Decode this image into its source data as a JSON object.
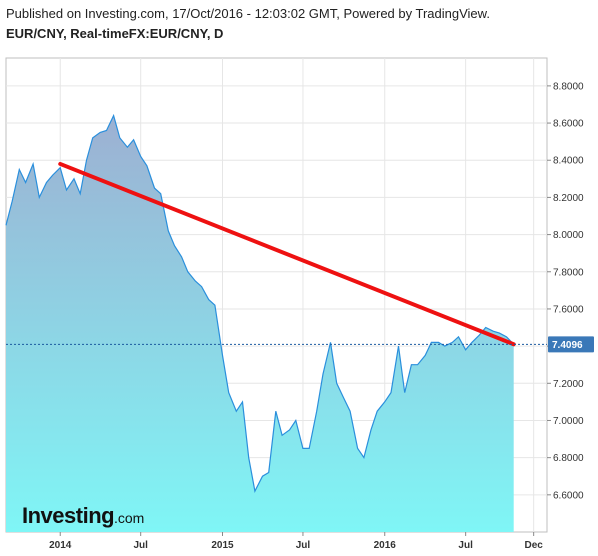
{
  "header": {
    "published": "Published on Investing.com, 17/Oct/2016 - 12:03:02 GMT, Powered by TradingView.",
    "title": "EUR/CNY, Real-timeFX:EUR/CNY, D"
  },
  "logo": {
    "main": "Investing",
    "suffix": ".com"
  },
  "colors": {
    "line": "#2a8fdc",
    "area_top": "#9db0d2",
    "area_bottom": "#7ff6f6",
    "trendline": "#ee1111",
    "current_price_line": "#1a5aa0",
    "price_badge": "#3a78b8"
  },
  "chart_data": {
    "type": "area",
    "title": "",
    "xlabel": "",
    "ylabel": "",
    "ylim": [
      6.4,
      8.95
    ],
    "yticks": [
      6.6,
      6.8,
      7.0,
      7.2,
      7.4,
      7.6,
      7.8,
      8.0,
      8.2,
      8.4,
      8.6,
      8.8
    ],
    "ytick_labels": [
      "6.6000",
      "6.8000",
      "7.0000",
      "7.2000",
      "7.4000",
      "7.6000",
      "7.8000",
      "8.0000",
      "8.2000",
      "8.4000",
      "8.6000",
      "8.8000"
    ],
    "xlim": [
      "2013-09-01",
      "2016-12-31"
    ],
    "xticks": [
      {
        "date": "2014-01-01",
        "label": "2014"
      },
      {
        "date": "2014-07-01",
        "label": "Jul"
      },
      {
        "date": "2015-01-01",
        "label": "2015"
      },
      {
        "date": "2015-07-01",
        "label": "Jul"
      },
      {
        "date": "2016-01-01",
        "label": "2016"
      },
      {
        "date": "2016-07-01",
        "label": "Jul"
      },
      {
        "date": "2016-12-01",
        "label": "Dec"
      }
    ],
    "grid": true,
    "last_value": 7.4096,
    "last_value_label": "7.4096",
    "series": [
      {
        "points": [
          [
            "2013-09-01",
            8.05
          ],
          [
            "2013-09-15",
            8.18
          ],
          [
            "2013-10-01",
            8.35
          ],
          [
            "2013-10-15",
            8.28
          ],
          [
            "2013-11-01",
            8.38
          ],
          [
            "2013-11-15",
            8.2
          ],
          [
            "2013-12-01",
            8.28
          ],
          [
            "2013-12-15",
            8.32
          ],
          [
            "2014-01-01",
            8.36
          ],
          [
            "2014-01-15",
            8.24
          ],
          [
            "2014-02-01",
            8.3
          ],
          [
            "2014-02-15",
            8.22
          ],
          [
            "2014-03-01",
            8.4
          ],
          [
            "2014-03-15",
            8.52
          ],
          [
            "2014-04-01",
            8.55
          ],
          [
            "2014-04-15",
            8.56
          ],
          [
            "2014-05-01",
            8.64
          ],
          [
            "2014-05-15",
            8.52
          ],
          [
            "2014-06-01",
            8.47
          ],
          [
            "2014-06-15",
            8.51
          ],
          [
            "2014-07-01",
            8.42
          ],
          [
            "2014-07-15",
            8.37
          ],
          [
            "2014-08-01",
            8.25
          ],
          [
            "2014-08-15",
            8.22
          ],
          [
            "2014-09-01",
            8.02
          ],
          [
            "2014-09-15",
            7.94
          ],
          [
            "2014-10-01",
            7.88
          ],
          [
            "2014-10-15",
            7.8
          ],
          [
            "2014-11-01",
            7.75
          ],
          [
            "2014-11-15",
            7.72
          ],
          [
            "2014-12-01",
            7.65
          ],
          [
            "2014-12-15",
            7.62
          ],
          [
            "2015-01-01",
            7.35
          ],
          [
            "2015-01-15",
            7.15
          ],
          [
            "2015-02-01",
            7.05
          ],
          [
            "2015-02-15",
            7.1
          ],
          [
            "2015-03-01",
            6.8
          ],
          [
            "2015-03-15",
            6.62
          ],
          [
            "2015-04-01",
            6.7
          ],
          [
            "2015-04-15",
            6.72
          ],
          [
            "2015-05-01",
            7.05
          ],
          [
            "2015-05-15",
            6.92
          ],
          [
            "2015-06-01",
            6.95
          ],
          [
            "2015-06-15",
            7.0
          ],
          [
            "2015-07-01",
            6.85
          ],
          [
            "2015-07-15",
            6.85
          ],
          [
            "2015-08-01",
            7.05
          ],
          [
            "2015-08-15",
            7.25
          ],
          [
            "2015-09-01",
            7.42
          ],
          [
            "2015-09-15",
            7.2
          ],
          [
            "2015-10-01",
            7.12
          ],
          [
            "2015-10-15",
            7.05
          ],
          [
            "2015-11-01",
            6.85
          ],
          [
            "2015-11-15",
            6.8
          ],
          [
            "2015-12-01",
            6.95
          ],
          [
            "2015-12-15",
            7.05
          ],
          [
            "2016-01-01",
            7.1
          ],
          [
            "2016-01-15",
            7.15
          ],
          [
            "2016-02-01",
            7.4
          ],
          [
            "2016-02-15",
            7.15
          ],
          [
            "2016-03-01",
            7.3
          ],
          [
            "2016-03-15",
            7.3
          ],
          [
            "2016-04-01",
            7.35
          ],
          [
            "2016-04-15",
            7.42
          ],
          [
            "2016-05-01",
            7.42
          ],
          [
            "2016-05-15",
            7.4
          ],
          [
            "2016-06-01",
            7.42
          ],
          [
            "2016-06-15",
            7.45
          ],
          [
            "2016-07-01",
            7.38
          ],
          [
            "2016-07-15",
            7.42
          ],
          [
            "2016-08-01",
            7.46
          ],
          [
            "2016-08-15",
            7.5
          ],
          [
            "2016-09-01",
            7.48
          ],
          [
            "2016-09-15",
            7.47
          ],
          [
            "2016-10-01",
            7.45
          ],
          [
            "2016-10-17",
            7.41
          ]
        ]
      }
    ],
    "trendline": {
      "from": [
        "2014-01-01",
        8.38
      ],
      "to": [
        "2016-10-17",
        7.41
      ]
    }
  }
}
